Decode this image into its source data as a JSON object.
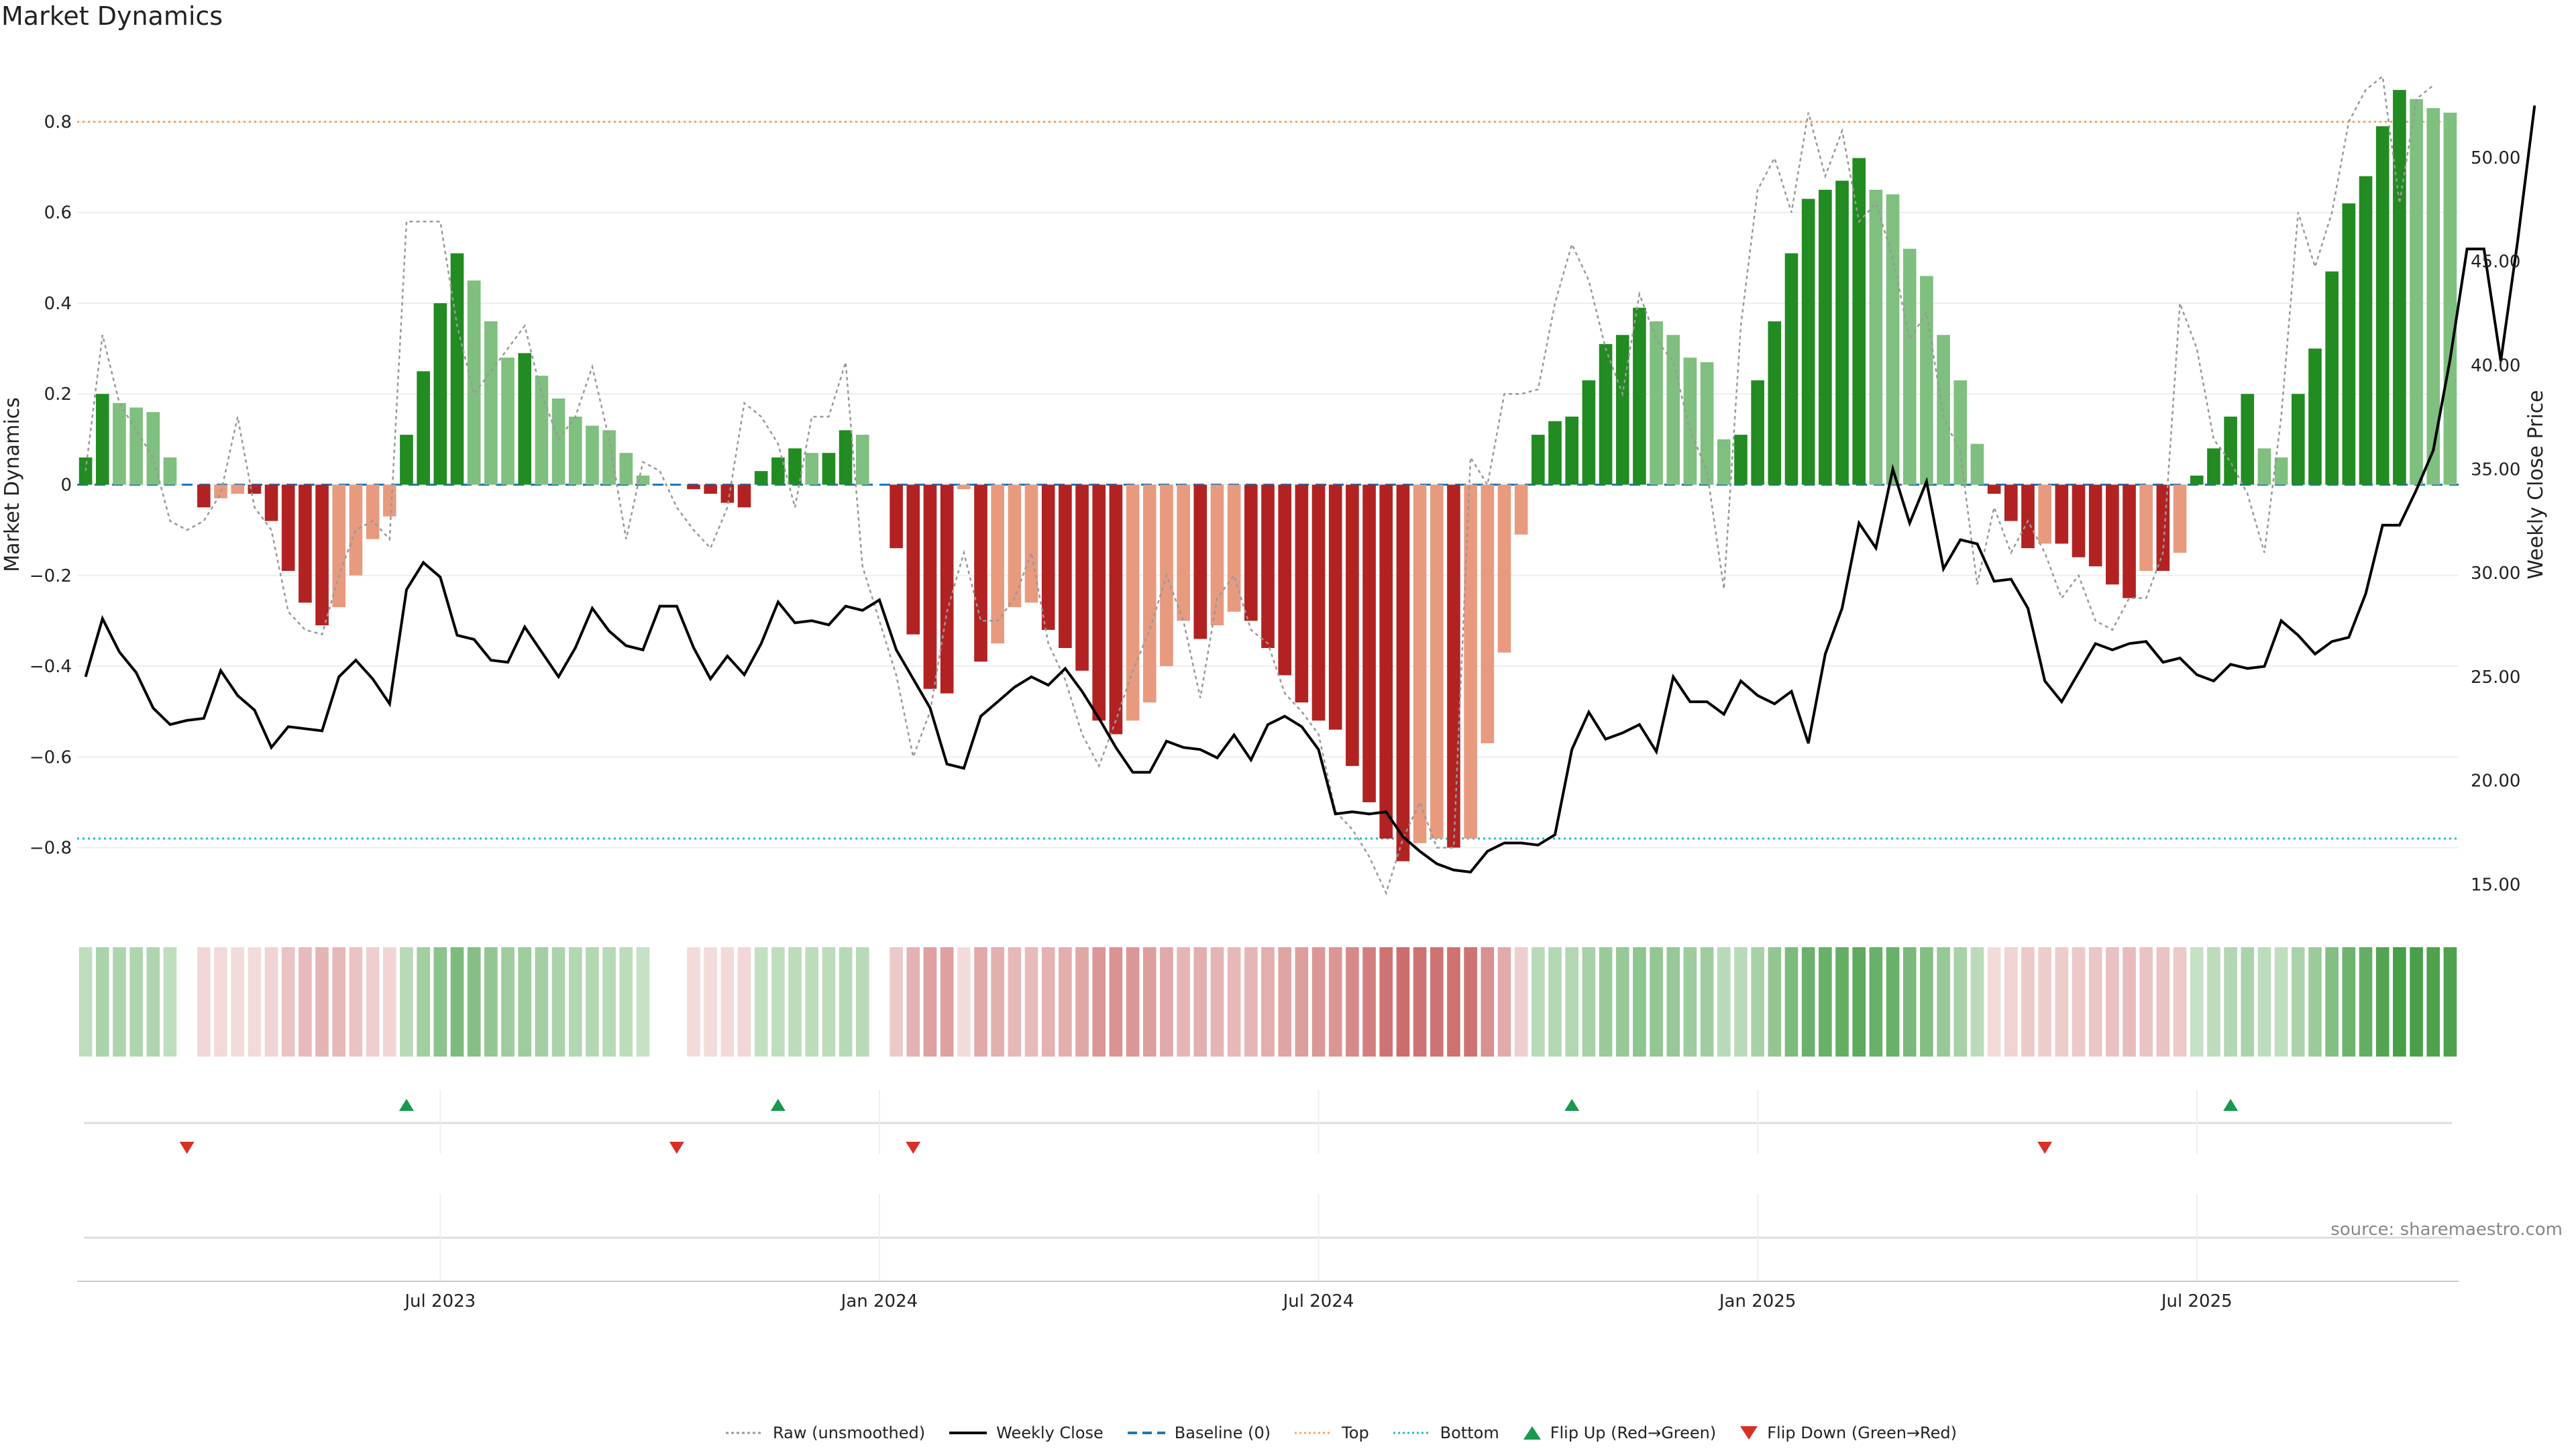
{
  "chart_data": {
    "type": "bar",
    "title": "Market Dynamics",
    "source": "source: sharemaestro.com",
    "ylabel_left": "Market Dynamics",
    "ylabel_right": "Weekly Close Price",
    "ylim_left": [
      -0.95,
      0.95
    ],
    "ylim_right": [
      13.5,
      55.0
    ],
    "y_ticks_left": [
      "0.8",
      "0.6",
      "0.4",
      "0.2",
      "0",
      "−0.2",
      "−0.4",
      "−0.6",
      "−0.8"
    ],
    "y_ticks_right": [
      "50.00",
      "45.00",
      "40.00",
      "35.00",
      "30.00",
      "25.00",
      "20.00",
      "15.00"
    ],
    "x_ticks": [
      "Jul 2023",
      "Jan 2024",
      "Jul 2024",
      "Jan 2025",
      "Jul 2025"
    ],
    "top_line": 0.8,
    "bottom_line": -0.78,
    "grid": true,
    "legend_position": "bottom-center",
    "legend": [
      "Raw (unsmoothed)",
      "Weekly Close",
      "Baseline (0)",
      "Top",
      "Bottom",
      "Flip Up (Red→Green)",
      "Flip Down (Green→Red)"
    ],
    "colors": {
      "strong_green": "#228b22",
      "light_green": "#7fbf7f",
      "strong_red": "#b22222",
      "light_red": "#e89a7f",
      "raw": "#999999",
      "close": "#000000",
      "baseline": "#1f77b4",
      "top": "#f4a460",
      "bottom": "#17becf",
      "flip_up": "#1a9850",
      "flip_down": "#d73027"
    },
    "momentum": [
      0.06,
      0.2,
      0.18,
      0.17,
      0.16,
      0.06,
      0.0,
      -0.05,
      -0.03,
      -0.02,
      -0.02,
      -0.08,
      -0.19,
      -0.26,
      -0.31,
      -0.27,
      -0.2,
      -0.12,
      -0.07,
      0.11,
      0.25,
      0.4,
      0.51,
      0.45,
      0.36,
      0.28,
      0.29,
      0.24,
      0.19,
      0.15,
      0.13,
      0.12,
      0.07,
      0.02,
      0.0,
      0.0,
      -0.01,
      -0.02,
      -0.04,
      -0.05,
      0.03,
      0.06,
      0.08,
      0.07,
      0.07,
      0.12,
      0.11,
      0.0,
      -0.14,
      -0.33,
      -0.45,
      -0.46,
      -0.01,
      -0.39,
      -0.35,
      -0.27,
      -0.26,
      -0.32,
      -0.36,
      -0.41,
      -0.52,
      -0.55,
      -0.52,
      -0.48,
      -0.4,
      -0.3,
      -0.34,
      -0.31,
      -0.28,
      -0.3,
      -0.36,
      -0.42,
      -0.48,
      -0.52,
      -0.54,
      -0.62,
      -0.7,
      -0.78,
      -0.83,
      -0.79,
      -0.78,
      -0.8,
      -0.78,
      -0.57,
      -0.37,
      -0.11,
      0.11,
      0.14,
      0.15,
      0.23,
      0.31,
      0.33,
      0.39,
      0.36,
      0.33,
      0.28,
      0.27,
      0.1,
      0.11,
      0.23,
      0.36,
      0.51,
      0.63,
      0.65,
      0.67,
      0.72,
      0.65,
      0.64,
      0.52,
      0.46,
      0.33,
      0.23,
      0.09,
      -0.02,
      -0.08,
      -0.14,
      -0.13,
      -0.13,
      -0.16,
      -0.18,
      -0.22,
      -0.25,
      -0.19,
      -0.19,
      -0.15,
      0.02,
      0.08,
      0.15,
      0.2,
      0.08,
      0.06,
      0.2,
      0.3,
      0.47,
      0.62,
      0.68,
      0.79,
      0.87,
      0.85,
      0.83,
      0.82
    ],
    "raw": [
      0.03,
      0.33,
      0.18,
      0.12,
      0.06,
      -0.08,
      -0.1,
      -0.08,
      -0.02,
      0.15,
      -0.05,
      -0.1,
      -0.28,
      -0.32,
      -0.33,
      -0.2,
      -0.1,
      -0.08,
      -0.12,
      0.58,
      0.58,
      0.58,
      0.35,
      0.2,
      0.25,
      0.3,
      0.35,
      0.2,
      0.1,
      0.15,
      0.26,
      0.1,
      -0.12,
      0.05,
      0.03,
      -0.05,
      -0.1,
      -0.14,
      -0.05,
      0.18,
      0.15,
      0.09,
      -0.05,
      0.15,
      0.15,
      0.27,
      -0.18,
      -0.3,
      -0.42,
      -0.6,
      -0.5,
      -0.28,
      -0.15,
      -0.3,
      -0.3,
      -0.25,
      -0.15,
      -0.35,
      -0.43,
      -0.55,
      -0.62,
      -0.52,
      -0.41,
      -0.32,
      -0.2,
      -0.3,
      -0.47,
      -0.25,
      -0.2,
      -0.32,
      -0.35,
      -0.46,
      -0.5,
      -0.55,
      -0.72,
      -0.76,
      -0.82,
      -0.9,
      -0.78,
      -0.7,
      -0.8,
      -0.8,
      0.06,
      0.0,
      0.2,
      0.2,
      0.21,
      0.4,
      0.53,
      0.45,
      0.3,
      0.2,
      0.42,
      0.32,
      0.27,
      0.12,
      0.03,
      -0.23,
      0.35,
      0.65,
      0.72,
      0.6,
      0.82,
      0.68,
      0.78,
      0.58,
      0.62,
      0.5,
      0.32,
      0.38,
      0.15,
      0.07,
      -0.22,
      -0.05,
      -0.15,
      -0.08,
      -0.15,
      -0.25,
      -0.2,
      -0.3,
      -0.32,
      -0.25,
      -0.25,
      -0.15,
      0.4,
      0.3,
      0.1,
      0.05,
      -0.02,
      -0.15,
      0.15,
      0.6,
      0.48,
      0.6,
      0.8,
      0.87,
      0.9,
      0.62,
      0.85,
      0.88
    ],
    "close": [
      25.0,
      27.8,
      26.2,
      25.2,
      23.5,
      22.7,
      22.9,
      23.0,
      25.3,
      24.1,
      23.4,
      21.6,
      22.6,
      22.5,
      22.4,
      25.0,
      25.8,
      24.9,
      23.7,
      29.2,
      30.5,
      29.8,
      27.0,
      26.8,
      25.8,
      25.7,
      27.4,
      26.2,
      25.0,
      26.4,
      28.3,
      27.2,
      26.5,
      26.3,
      28.4,
      28.4,
      26.4,
      24.9,
      26.0,
      25.1,
      26.6,
      28.6,
      27.6,
      27.7,
      27.5,
      28.4,
      28.2,
      28.7,
      26.3,
      24.9,
      23.5,
      20.8,
      20.6,
      23.1,
      23.8,
      24.5,
      25.0,
      24.6,
      25.4,
      24.3,
      23.0,
      21.6,
      20.4,
      20.4,
      21.9,
      21.6,
      21.5,
      21.1,
      22.2,
      21.0,
      22.7,
      23.1,
      22.6,
      21.5,
      18.4,
      18.5,
      18.4,
      18.5,
      17.3,
      16.6,
      16.0,
      15.7,
      15.6,
      16.6,
      17.0,
      17.0,
      16.9,
      17.4,
      21.5,
      23.3,
      22.0,
      22.3,
      22.7,
      21.4,
      25.0,
      23.8,
      23.8,
      23.2,
      24.8,
      24.1,
      23.7,
      24.3,
      21.8,
      26.1,
      28.3,
      32.4,
      31.2,
      35.0,
      32.4,
      34.4,
      30.2,
      31.6,
      31.4,
      29.6,
      29.7,
      28.3,
      24.8,
      23.8,
      25.2,
      26.6,
      26.3,
      26.6,
      26.7,
      25.7,
      25.9,
      25.1,
      24.8,
      25.6,
      25.4,
      25.5,
      27.7,
      27.0,
      26.1,
      26.7,
      26.9,
      29.0,
      32.3,
      32.3,
      34.0,
      35.9,
      40.3,
      45.6,
      45.6,
      40.2,
      46.0,
      52.5
    ]
  },
  "flips": {
    "up_x": [
      19,
      41,
      88,
      127
    ],
    "down_x": [
      6,
      35,
      49,
      116
    ]
  }
}
